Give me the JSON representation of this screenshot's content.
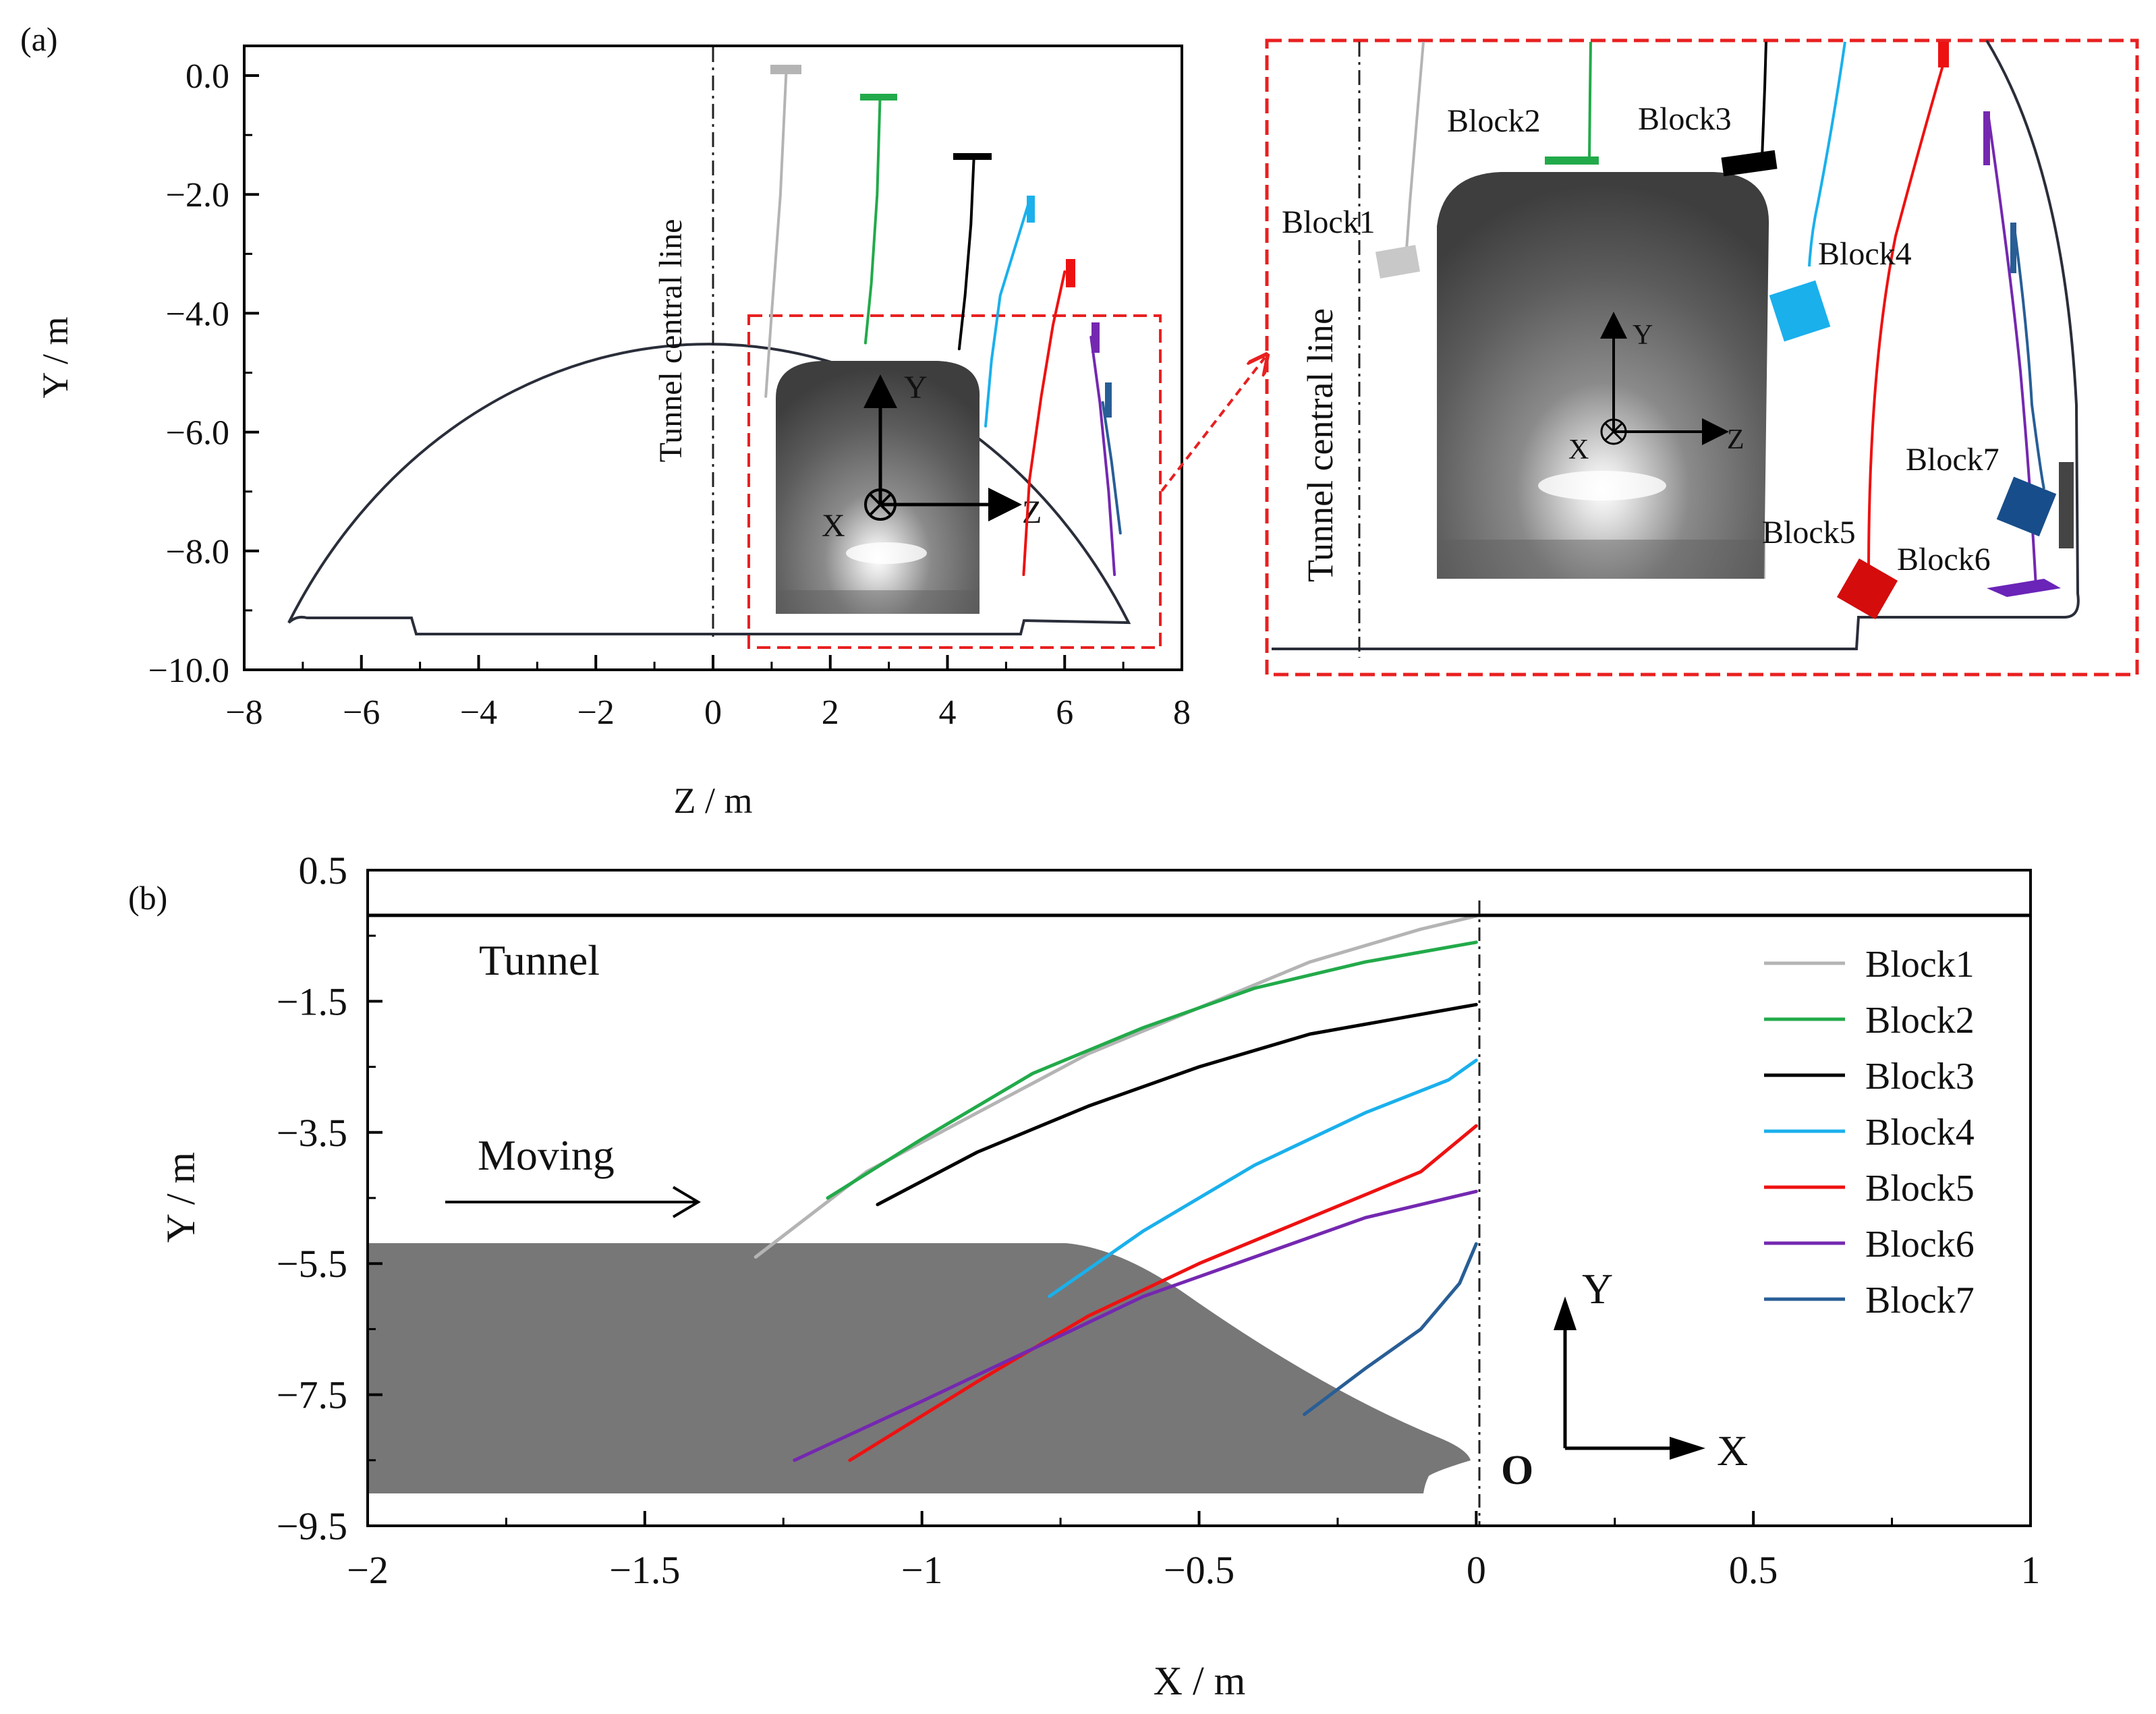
{
  "colors": {
    "Block1": "#b4b4b4",
    "Block2": "#22aa4a",
    "Block3": "#000000",
    "Block4": "#1ab0ec",
    "Block5": "#ee1111",
    "Block6": "#7428b0",
    "Block7": "#285e96",
    "tunnel": "#2a2e3a",
    "zoom_box": "#e82020",
    "train": "#7a7a7a"
  },
  "chart_data": [
    {
      "panel": "(a)",
      "type": "line",
      "xlabel": "Z / m",
      "ylabel": "Y / m",
      "xlim": [
        -8,
        8
      ],
      "ylim": [
        -10,
        0.5
      ],
      "xticks": [
        "−8",
        "−6",
        "−4",
        "−2",
        "0",
        "2",
        "4",
        "6",
        "8"
      ],
      "yticks": [
        "0.0",
        "−2.0",
        "−4.0",
        "−6.0",
        "−8.0",
        "−10.0"
      ],
      "annotations": {
        "central_line": "Tunnel central line",
        "axis_x": "X",
        "axis_y": "Y",
        "axis_z": "Z"
      },
      "series": [
        {
          "name": "Block1",
          "z": [
            1.25,
            1.15,
            1.0,
            0.9
          ],
          "y": [
            0.1,
            -2.0,
            -4.0,
            -5.4
          ]
        },
        {
          "name": "Block2",
          "z": [
            2.85,
            2.8,
            2.7,
            2.6
          ],
          "y": [
            -0.35,
            -2.0,
            -3.5,
            -4.5
          ]
        },
        {
          "name": "Block3",
          "z": [
            4.45,
            4.4,
            4.3,
            4.2
          ],
          "y": [
            -1.4,
            -2.5,
            -3.7,
            -4.6
          ]
        },
        {
          "name": "Block4",
          "z": [
            5.4,
            5.15,
            4.9,
            4.75,
            4.65
          ],
          "y": [
            -2.1,
            -2.9,
            -3.7,
            -4.8,
            -5.9
          ]
        },
        {
          "name": "Block5",
          "z": [
            6.0,
            5.8,
            5.6,
            5.4,
            5.3
          ],
          "y": [
            -3.3,
            -4.2,
            -5.4,
            -6.8,
            -8.4
          ]
        },
        {
          "name": "Block6",
          "z": [
            6.45,
            6.6,
            6.75,
            6.85
          ],
          "y": [
            -4.4,
            -5.5,
            -7.0,
            -8.4
          ]
        },
        {
          "name": "Block7",
          "z": [
            6.65,
            6.8,
            6.95
          ],
          "y": [
            -5.5,
            -6.5,
            -7.7
          ]
        }
      ]
    },
    {
      "panel": "(a) zoom",
      "type": "line",
      "labels": [
        "Block1",
        "Block2",
        "Block3",
        "Block4",
        "Block5",
        "Block6",
        "Block7"
      ],
      "annotations": {
        "central_line": "Tunnel central line",
        "axis_x": "X",
        "axis_y": "Y",
        "axis_z": "Z"
      }
    },
    {
      "panel": "(b)",
      "type": "line",
      "xlabel": "X / m",
      "ylabel": "Y / m",
      "xlim": [
        -2,
        1
      ],
      "ylim": [
        -9.5,
        0.5
      ],
      "xticks": [
        "−2",
        "−1.5",
        "−1",
        "−0.5",
        "0",
        "0.5",
        "1"
      ],
      "yticks": [
        "0.5",
        "−1.5",
        "−3.5",
        "−5.5",
        "−7.5",
        "−9.5"
      ],
      "annotations": {
        "tunnel": "Tunnel",
        "moving": "Moving",
        "origin": "O",
        "axis_x": "X",
        "axis_y": "Y"
      },
      "series": [
        {
          "name": "Block1",
          "x": [
            -1.3,
            -1.1,
            -0.9,
            -0.7,
            -0.5,
            -0.3,
            -0.1,
            0.0
          ],
          "y": [
            -5.4,
            -4.1,
            -3.2,
            -2.3,
            -1.6,
            -0.9,
            -0.4,
            -0.2
          ]
        },
        {
          "name": "Block2",
          "x": [
            -1.17,
            -1.0,
            -0.8,
            -0.6,
            -0.4,
            -0.2,
            0.0
          ],
          "y": [
            -4.5,
            -3.6,
            -2.6,
            -1.9,
            -1.3,
            -0.9,
            -0.6
          ]
        },
        {
          "name": "Block3",
          "x": [
            -1.08,
            -0.9,
            -0.7,
            -0.5,
            -0.3,
            -0.1,
            0.0
          ],
          "y": [
            -4.6,
            -3.8,
            -3.1,
            -2.5,
            -2.0,
            -1.7,
            -1.55
          ]
        },
        {
          "name": "Block4",
          "x": [
            -0.77,
            -0.6,
            -0.4,
            -0.2,
            -0.05,
            0.0
          ],
          "y": [
            -6.0,
            -5.0,
            -4.0,
            -3.2,
            -2.7,
            -2.4
          ]
        },
        {
          "name": "Block5",
          "x": [
            -1.13,
            -0.9,
            -0.7,
            -0.5,
            -0.3,
            -0.1,
            0.0
          ],
          "y": [
            -8.5,
            -7.3,
            -6.3,
            -5.5,
            -4.8,
            -4.1,
            -3.4
          ]
        },
        {
          "name": "Block6",
          "x": [
            -1.23,
            -1.0,
            -0.8,
            -0.6,
            -0.4,
            -0.2,
            0.0
          ],
          "y": [
            -8.5,
            -7.6,
            -6.8,
            -6.0,
            -5.4,
            -4.8,
            -4.4
          ]
        },
        {
          "name": "Block7",
          "x": [
            -0.31,
            -0.2,
            -0.1,
            -0.03,
            0.0
          ],
          "y": [
            -7.8,
            -7.1,
            -6.5,
            -5.8,
            -5.2
          ]
        }
      ]
    }
  ]
}
